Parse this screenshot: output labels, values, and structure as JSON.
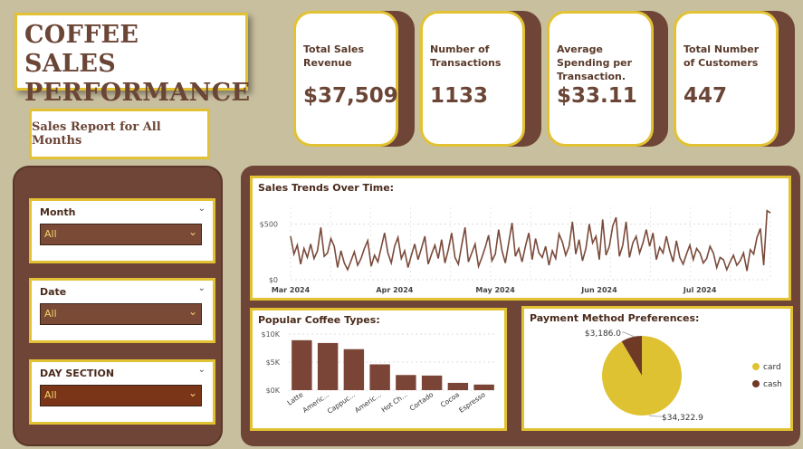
{
  "header": {
    "title_line1": "COFFEE SALES",
    "title_line2": "PERFORMANCE",
    "subtitle": "Sales Report for All Months"
  },
  "kpis": [
    {
      "label": "Total Sales Revenue",
      "value": "$37,509"
    },
    {
      "label": "Number of Transactions",
      "value": "1133"
    },
    {
      "label": "Average Spending per Transaction.",
      "value": "$33.11"
    },
    {
      "label": "Total Number of Customers",
      "value": "447"
    }
  ],
  "slicers": [
    {
      "label": "Month",
      "value": "All"
    },
    {
      "label": "Date",
      "value": "All"
    },
    {
      "label": "DAY SECTION",
      "value": "All"
    }
  ],
  "colors": {
    "brown": "#6e4536",
    "gold": "#e2c233",
    "line": "#7a4a3a",
    "cash": "#6e3a26",
    "card": "#dfc232"
  },
  "chart_data": [
    {
      "type": "line",
      "title": "Sales Trends Over Time:",
      "x_tick_labels": [
        "Mar 2024",
        "Apr 2024",
        "May 2024",
        "Jun 2024",
        "Jul 2024"
      ],
      "y_tick_labels": [
        "$0",
        "$500"
      ],
      "ylim": [
        0,
        650
      ],
      "grid": true,
      "values": [
        390,
        230,
        310,
        140,
        280,
        200,
        320,
        190,
        260,
        470,
        210,
        240,
        370,
        300,
        110,
        260,
        150,
        90,
        170,
        250,
        130,
        190,
        280,
        350,
        120,
        220,
        160,
        290,
        420,
        240,
        150,
        300,
        380,
        190,
        260,
        110,
        220,
        320,
        180,
        280,
        390,
        140,
        230,
        310,
        190,
        360,
        150,
        270,
        420,
        200,
        140,
        310,
        470,
        160,
        240,
        320,
        120,
        200,
        290,
        400,
        170,
        230,
        450,
        260,
        150,
        330,
        510,
        210,
        280,
        160,
        300,
        420,
        180,
        370,
        240,
        200,
        300,
        130,
        260,
        190,
        410,
        340,
        220,
        300,
        520,
        230,
        360,
        170,
        280,
        500,
        330,
        390,
        180,
        540,
        220,
        300,
        480,
        560,
        210,
        310,
        520,
        200,
        330,
        390,
        240,
        330,
        450,
        300,
        420,
        180,
        290,
        240,
        390,
        260,
        160,
        350,
        200,
        140,
        230,
        310,
        180,
        280,
        240,
        150,
        190,
        300,
        240,
        110,
        200,
        180,
        90,
        160,
        220,
        130,
        170,
        240,
        80,
        270,
        230,
        380,
        460,
        130,
        620,
        600
      ]
    },
    {
      "type": "bar",
      "title": "Popular Coffee Types:",
      "categories": [
        "Latte",
        "Americ...",
        "Cappuc...",
        "Americ...",
        "Hot Ch...",
        "Cortado",
        "Cocoa",
        "Espresso"
      ],
      "values": [
        8900,
        8400,
        7300,
        4600,
        2700,
        2600,
        1300,
        1000
      ],
      "y_tick_labels": [
        "$0K",
        "$5K",
        "$10K"
      ],
      "ylim": [
        0,
        10000
      ]
    },
    {
      "type": "pie",
      "title": "Payment Method Preferences:",
      "slices": [
        {
          "name": "card",
          "value": 34322.9,
          "label": "$34,322.9"
        },
        {
          "name": "cash",
          "value": 3186.0,
          "label": "$3,186.0"
        }
      ],
      "legend": "right"
    }
  ]
}
